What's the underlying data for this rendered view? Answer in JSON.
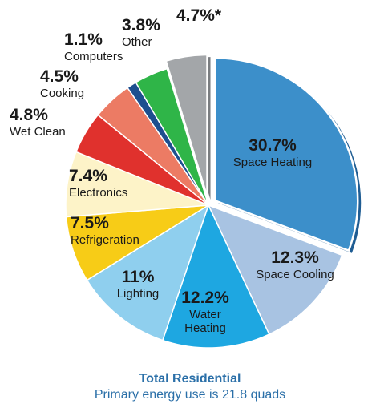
{
  "chart_data": {
    "type": "pie",
    "title": "Total Residential",
    "subtitle": "Primary energy use is 21.8 quads",
    "slices": [
      {
        "label": "Space Heating",
        "label_lines": [
          "Space Heating"
        ],
        "value_label": "30.7%",
        "value": 30.7,
        "color": "#3c8fca",
        "exploded": true
      },
      {
        "label": "Space Cooling",
        "label_lines": [
          "Space Cooling"
        ],
        "value_label": "12.3%",
        "value": 12.3,
        "color": "#a8c3e2",
        "exploded": false
      },
      {
        "label": "Water Heating",
        "label_lines": [
          "Water",
          "Heating"
        ],
        "value_label": "12.2%",
        "value": 12.2,
        "color": "#1ea7e1",
        "exploded": false
      },
      {
        "label": "Lighting",
        "label_lines": [
          "Lighting"
        ],
        "value_label": "11%",
        "value": 11.0,
        "color": "#8fcfee",
        "exploded": false
      },
      {
        "label": "Refrigeration",
        "label_lines": [
          "Refrigeration"
        ],
        "value_label": "7.5%",
        "value": 7.5,
        "color": "#f7cc17",
        "exploded": false
      },
      {
        "label": "Electronics",
        "label_lines": [
          "Electronics"
        ],
        "value_label": "7.4%",
        "value": 7.4,
        "color": "#fdf3c8",
        "exploded": false
      },
      {
        "label": "Wet Clean",
        "label_lines": [
          "Wet Clean"
        ],
        "value_label": "4.8%",
        "value": 4.8,
        "color": "#e0312d",
        "exploded": false
      },
      {
        "label": "Cooking",
        "label_lines": [
          "Cooking"
        ],
        "value_label": "4.5%",
        "value": 4.5,
        "color": "#ec7b64",
        "exploded": false
      },
      {
        "label": "Computers",
        "label_lines": [
          "Computers"
        ],
        "value_label": "1.1%",
        "value": 1.1,
        "color": "#1d4f8f",
        "exploded": false
      },
      {
        "label": "Other",
        "label_lines": [
          "Other"
        ],
        "value_label": "3.8%",
        "value": 3.8,
        "color": "#2fb548",
        "exploded": false
      },
      {
        "label": "",
        "label_lines": [],
        "value_label": "4.7%*",
        "value": 4.7,
        "color": "#a3a6a9",
        "exploded": true
      }
    ]
  }
}
